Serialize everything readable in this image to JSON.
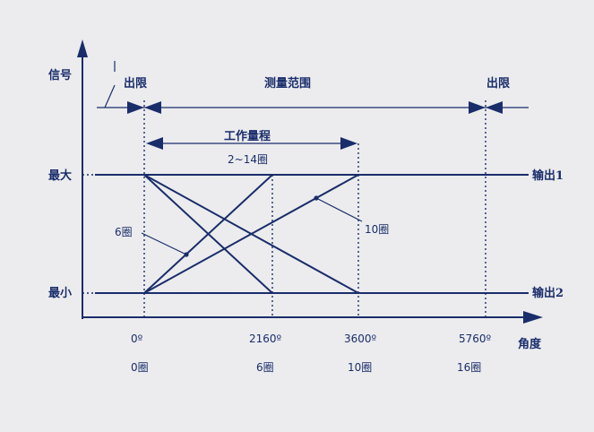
{
  "axis": {
    "y_title": "信号",
    "x_title": "角度",
    "max_label": "最大",
    "min_label": "最小"
  },
  "range": {
    "out_of_range_left": "出限",
    "out_of_range_right": "出限",
    "measuring_range": "测量范围",
    "working_range": "工作量程",
    "working_range_value": "2~14圈"
  },
  "outputs": {
    "output1": "输出1",
    "output2": "输出2"
  },
  "callouts": {
    "six_turns": "6圈",
    "ten_turns": "10圈"
  },
  "ticks": [
    {
      "angle": "0º",
      "turns": "0圈"
    },
    {
      "angle": "2160º",
      "turns": "6圈"
    },
    {
      "angle": "3600º",
      "turns": "10圈"
    },
    {
      "angle": "5760º",
      "turns": "16圈"
    }
  ],
  "colors": {
    "background": "#ececee",
    "ink": "#1a2d6b"
  }
}
